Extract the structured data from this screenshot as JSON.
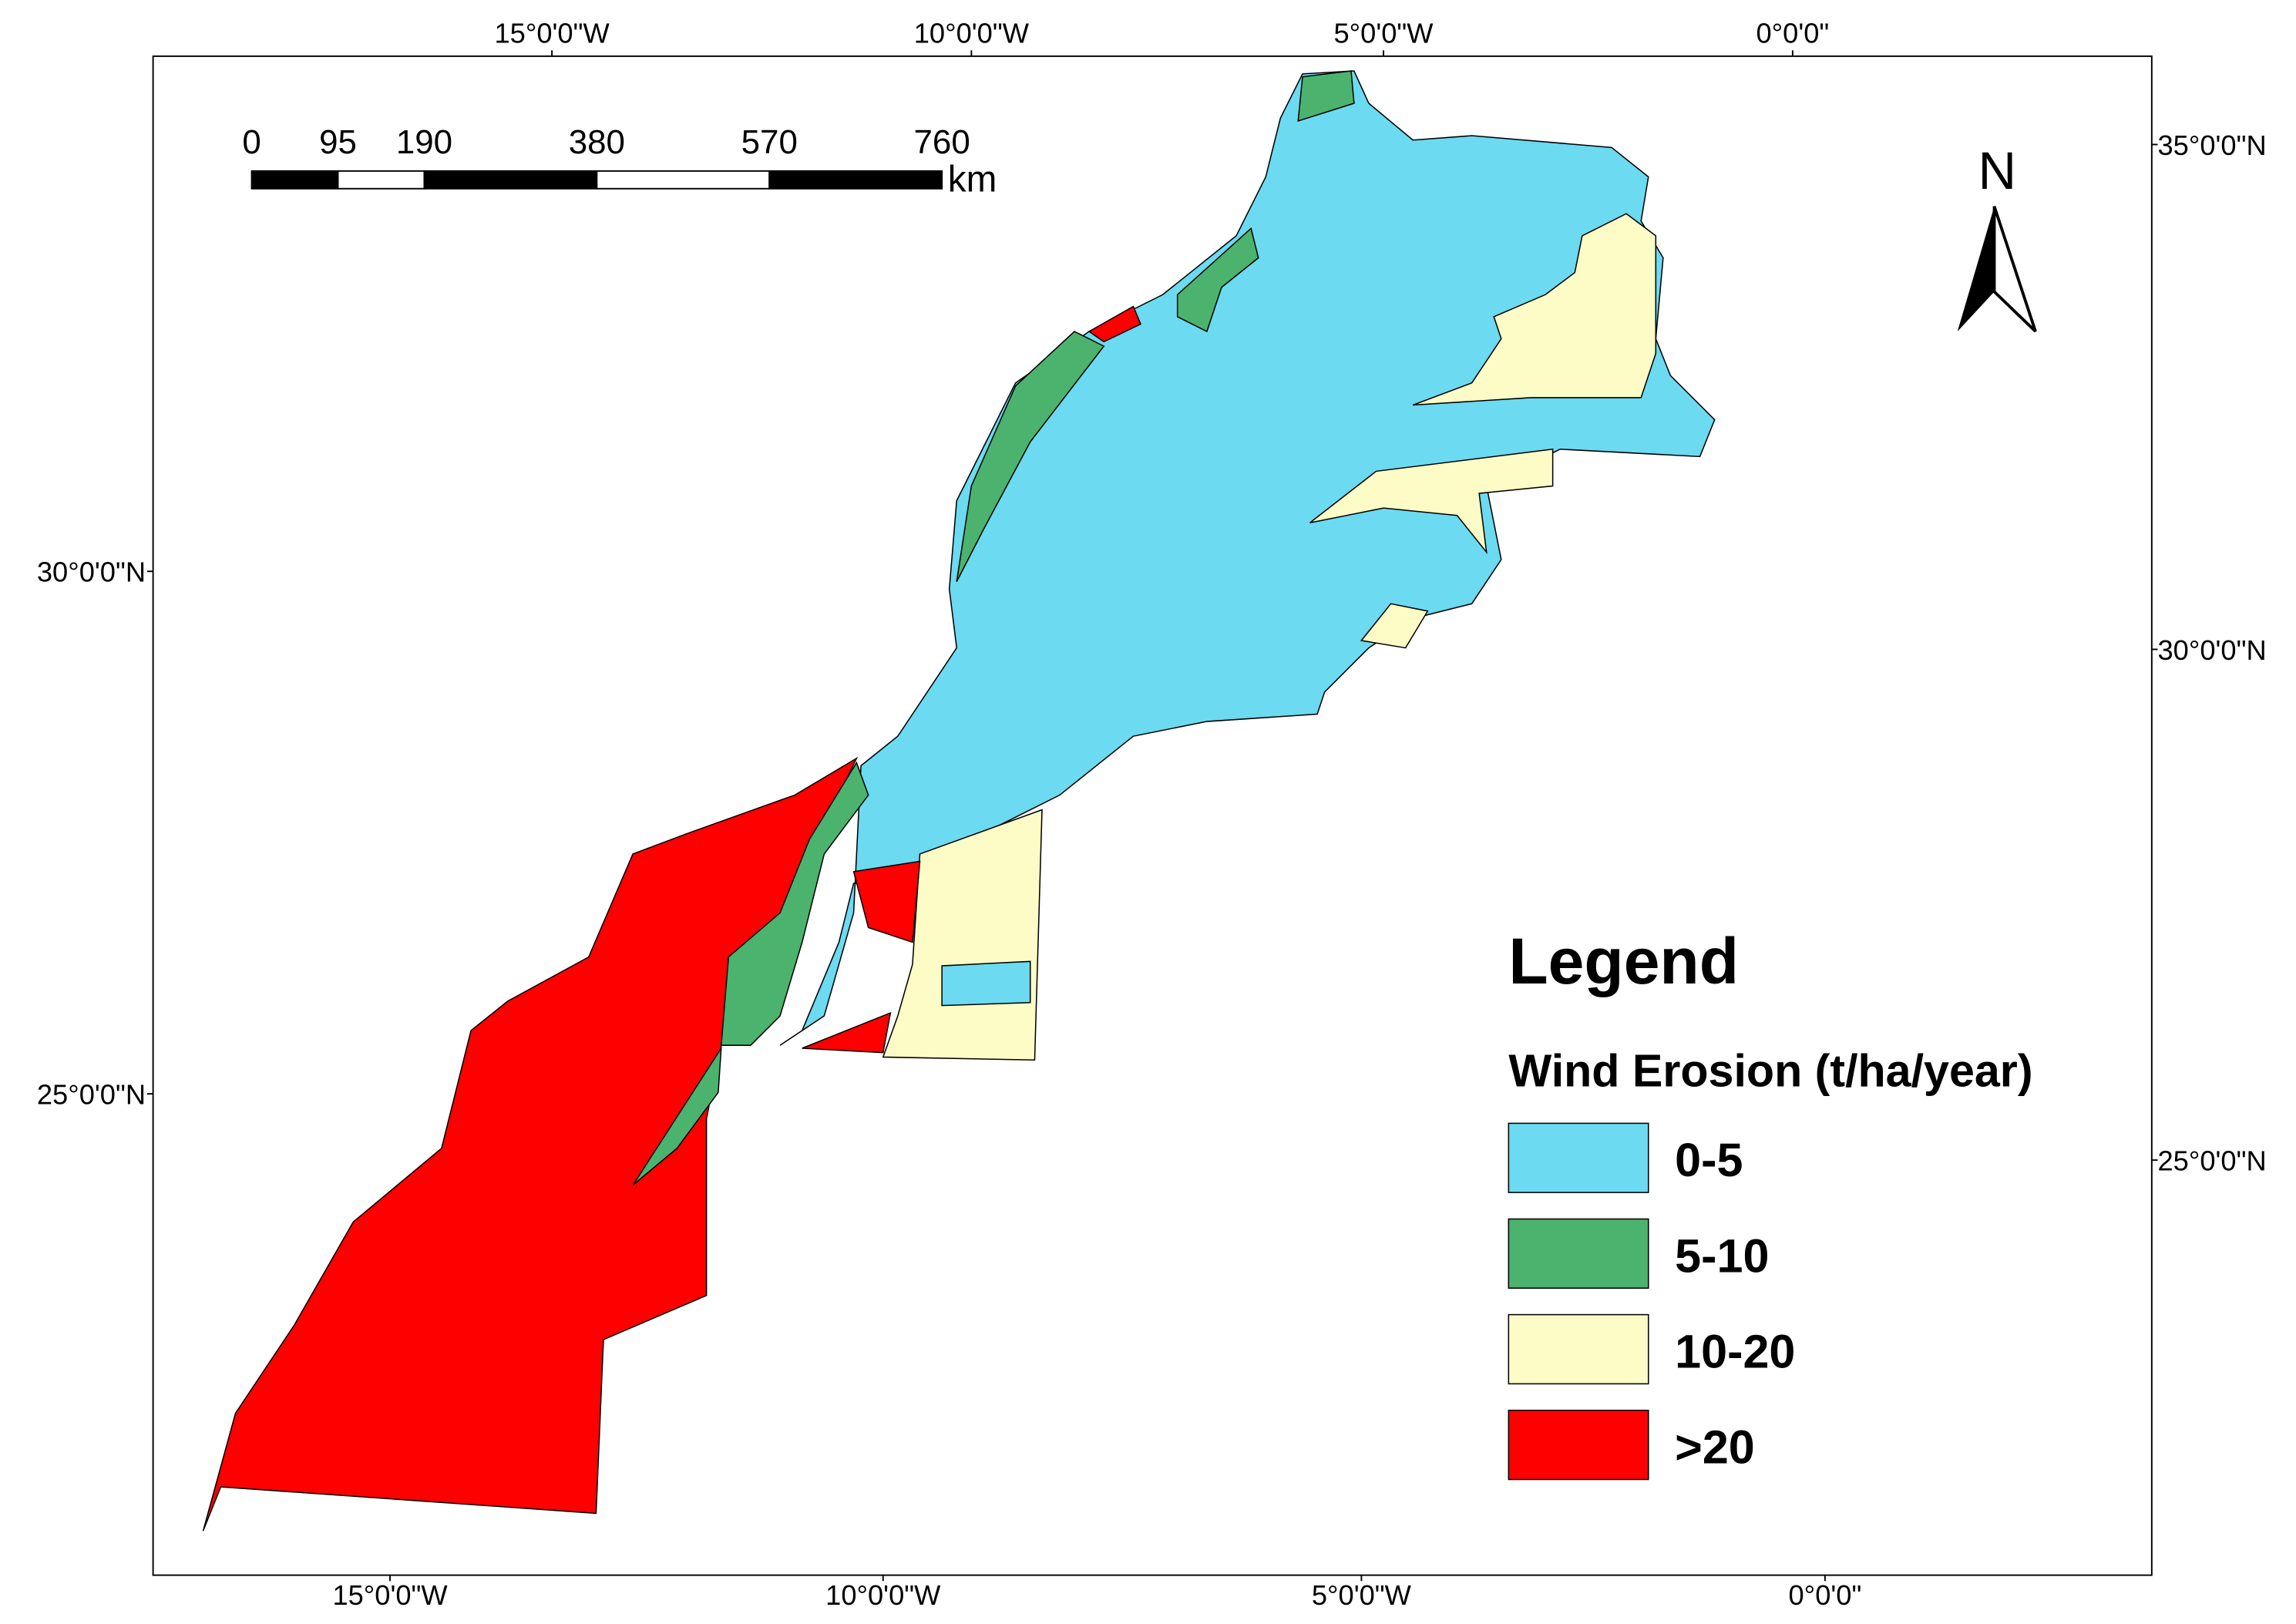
{
  "map": {
    "top_labels": [
      "15°0'0\"W",
      "10°0'0\"W",
      "5°0'0\"W",
      "0°0'0\""
    ],
    "bottom_labels": [
      "15°0'0\"W",
      "10°0'0\"W",
      "5°0'0\"W",
      "0°0'0\""
    ],
    "left_labels": [
      "30°0'0\"N",
      "25°0'0\"N"
    ],
    "right_labels": [
      "35°0'0\"N",
      "30°0'0\"N",
      "25°0'0\"N"
    ],
    "north": "N",
    "scale_bar": {
      "ticks": [
        0,
        95,
        190,
        380,
        570,
        760
      ],
      "unit": "km"
    }
  },
  "legend": {
    "title": "Legend",
    "subtitle": "Wind Erosion (t/ha/year)",
    "items": [
      {
        "label": "0-5",
        "color": "#6cdaf0"
      },
      {
        "label": "5-10",
        "color": "#4bb36e"
      },
      {
        "label": "10-20",
        "color": "#fdfcc6"
      },
      {
        "label": ">20",
        "color": "#fe0000"
      }
    ]
  }
}
